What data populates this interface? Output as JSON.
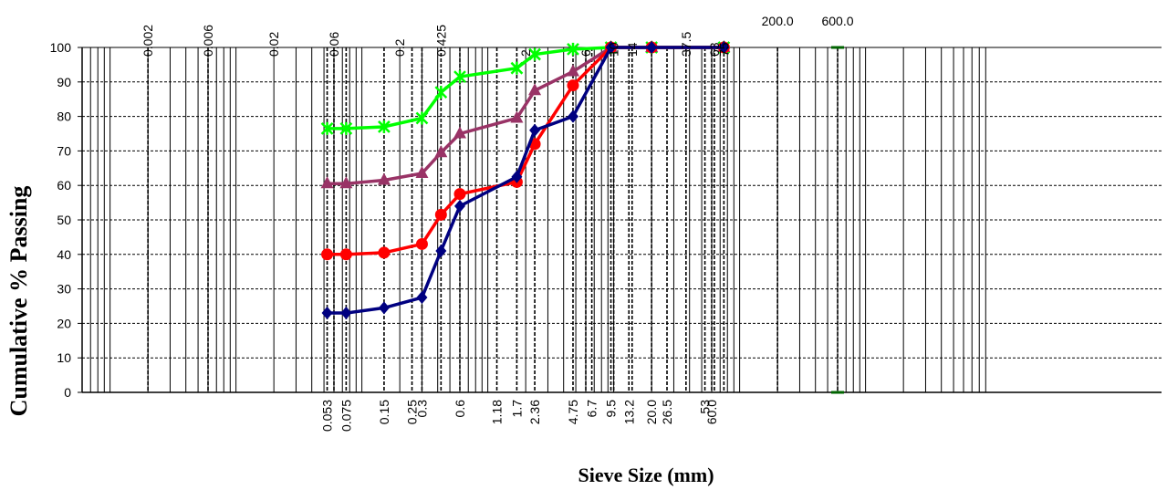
{
  "chart_data": {
    "type": "line",
    "title": "",
    "xlabel": "Sieve Size (mm)",
    "ylabel": "Cumulative % Passing",
    "xscale": "log",
    "xlim": [
      0.0006,
      1000
    ],
    "ylim": [
      0,
      100
    ],
    "yticks": [
      0,
      10,
      20,
      30,
      40,
      50,
      60,
      70,
      80,
      90,
      100
    ],
    "grid": "vertical lines at sieve sizes, dashed horizontal lines",
    "legend": "none",
    "bottom_sieve_labels": [
      "0.053",
      "0.075",
      "0.15",
      "0.25",
      "0.3",
      "0.6",
      "1.18",
      "1.7",
      "2.36",
      "4.75",
      "6.7",
      "9.5",
      "13.2",
      "20.0",
      "26.5",
      "53",
      "60.0"
    ],
    "top_labels": [
      "0.002",
      "0.006",
      "0.02",
      "0.06",
      "0.2",
      "0.425",
      "2",
      "6",
      "10",
      "14",
      "37.5",
      "63",
      "75",
      "200.0",
      "600.0"
    ],
    "series": [
      {
        "color": "#00ff00",
        "marker": "star",
        "x": [
          0.053,
          0.075,
          0.15,
          0.3,
          0.425,
          0.6,
          1.7,
          2.36,
          4.75,
          9.5,
          20.0,
          75
        ],
        "y": [
          76.5,
          76.5,
          77,
          79.5,
          87,
          91.5,
          94,
          98,
          99.5,
          100,
          100,
          100
        ]
      },
      {
        "color": "#993366",
        "marker": "triangle",
        "x": [
          0.053,
          0.075,
          0.15,
          0.3,
          0.425,
          0.6,
          1.7,
          2.36,
          4.75,
          9.5,
          20.0,
          75
        ],
        "y": [
          60.5,
          60.5,
          61.5,
          63.5,
          69.5,
          75,
          79.5,
          87.5,
          93,
          100,
          100,
          100
        ]
      },
      {
        "color": "#ff0000",
        "marker": "circle",
        "x": [
          0.053,
          0.075,
          0.15,
          0.3,
          0.425,
          0.6,
          1.7,
          2.36,
          4.75,
          9.5,
          20.0,
          75
        ],
        "y": [
          40,
          40,
          40.5,
          43,
          51.5,
          57.5,
          61,
          72,
          89,
          100,
          100,
          100
        ]
      },
      {
        "color": "#000080",
        "marker": "diamond",
        "x": [
          0.053,
          0.075,
          0.15,
          0.3,
          0.425,
          0.6,
          1.7,
          2.36,
          4.75,
          9.5,
          20.0,
          75
        ],
        "y": [
          23,
          23,
          24.5,
          27.5,
          41,
          54,
          62.5,
          76,
          80,
          100,
          100,
          100
        ]
      }
    ]
  }
}
